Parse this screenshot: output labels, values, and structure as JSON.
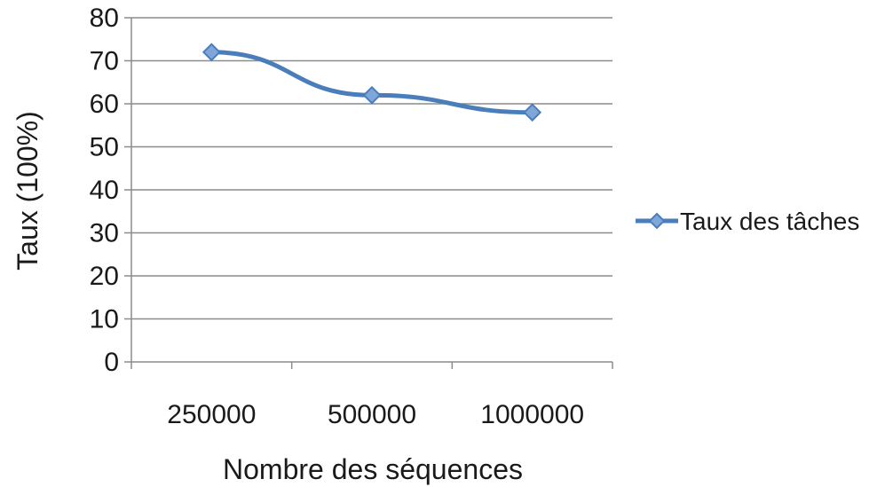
{
  "chart_data": {
    "type": "line",
    "categories": [
      "250000",
      "500000",
      "1000000"
    ],
    "series": [
      {
        "name": "Taux des tâches",
        "values": [
          72,
          62,
          58
        ],
        "color": "#4a7ebb"
      }
    ],
    "xlabel": "Nombre des séquences",
    "ylabel": "Taux (100%)",
    "ylim": [
      0,
      80
    ],
    "yticks": [
      "0",
      "10",
      "20",
      "30",
      "40",
      "50",
      "60",
      "70",
      "80"
    ],
    "grid": true,
    "legend": "right"
  }
}
